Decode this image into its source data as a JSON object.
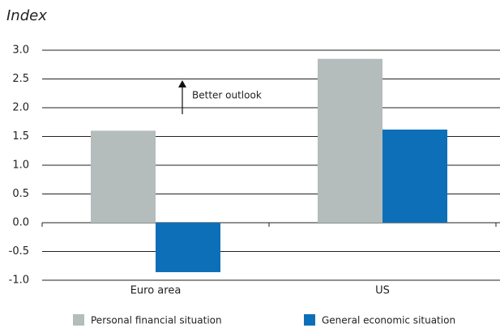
{
  "chart_data": {
    "type": "bar",
    "y_label": "Index",
    "categories": [
      "Euro area",
      "US"
    ],
    "series": [
      {
        "name": "Personal financial situation",
        "color": "#b4bcbc",
        "values": [
          1.6,
          2.85
        ]
      },
      {
        "name": "General economic situation",
        "color": "#0d6fb8",
        "values": [
          -0.86,
          1.62
        ]
      }
    ],
    "ylim": [
      -1,
      3
    ],
    "yticks": [
      {
        "value": -1,
        "label": "-1.0"
      },
      -0.5,
      {
        "value": 0,
        "label": "0.0"
      },
      0.5,
      {
        "value": 1,
        "label": "1.0"
      },
      1.5,
      {
        "value": 2,
        "label": "2.0"
      },
      2.5,
      {
        "value": 3,
        "label": "3.0"
      }
    ],
    "grid": true,
    "annotation": "Better outlook",
    "legend": "bottom"
  }
}
